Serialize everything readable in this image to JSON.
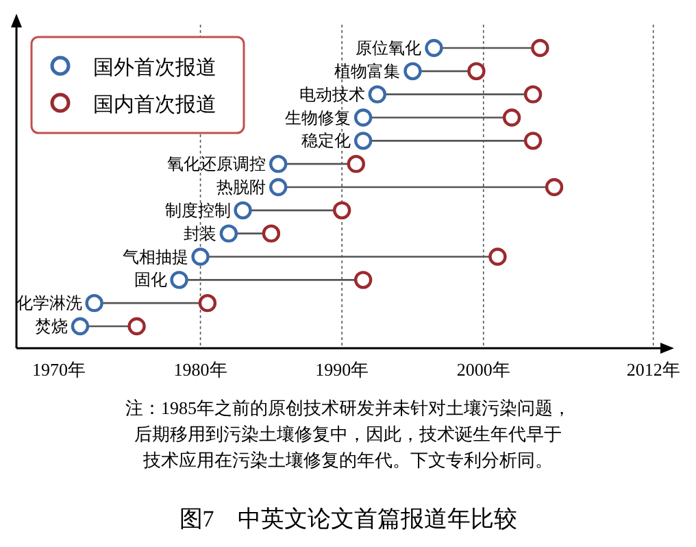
{
  "chart_data": {
    "type": "scatter",
    "orientation": "horizontal",
    "title": "图7　中英文论文首篇报道年比较",
    "annotations": [
      "注：1985年之前的原创技术研发并未针对土壤污染问题，",
      "后期移用到污染土壤修复中，因此，技术诞生年代早于",
      "技术应用在污染土壤修复的年代。下文专利分析同。"
    ],
    "categories": [
      "原位氧化",
      "植物富集",
      "电动技术",
      "生物修复",
      "稳定化",
      "氧化还原调控",
      "热脱附",
      "制度控制",
      "封装",
      "气相抽提",
      "固化",
      "化学淋洗",
      "焚烧"
    ],
    "series": [
      {
        "name": "国外首次报道",
        "color": "#3a6aa8",
        "values": [
          1996.5,
          1995,
          1992.5,
          1991.5,
          1991.5,
          1985.5,
          1985.5,
          1983,
          1982,
          1980,
          1978.5,
          1972.5,
          1971.5
        ]
      },
      {
        "name": "国内首次报道",
        "color": "#9b2a2e",
        "values": [
          2004,
          1999.5,
          2003.5,
          2002,
          2003.5,
          1991,
          2005,
          1990,
          1985,
          2001,
          1991.5,
          1980.5,
          1975.5
        ]
      }
    ],
    "xlim": [
      1967,
      2012.5
    ],
    "xticks": [
      {
        "value": 1970,
        "label": "1970年"
      },
      {
        "value": 1980,
        "label": "1980年"
      },
      {
        "value": 1990,
        "label": "1990年"
      },
      {
        "value": 2000,
        "label": "2000年"
      },
      {
        "value": 2012,
        "label": "2012年"
      }
    ],
    "ref_lines": [
      {
        "axis": "x",
        "value": 1980,
        "line_style": "dotted"
      },
      {
        "axis": "x",
        "value": 1990,
        "line_style": "dotted"
      },
      {
        "axis": "x",
        "value": 2000,
        "line_style": "dotted"
      },
      {
        "axis": "x",
        "value": 2012,
        "line_style": "dotted"
      }
    ],
    "marker": "circle",
    "legend": "top left"
  }
}
